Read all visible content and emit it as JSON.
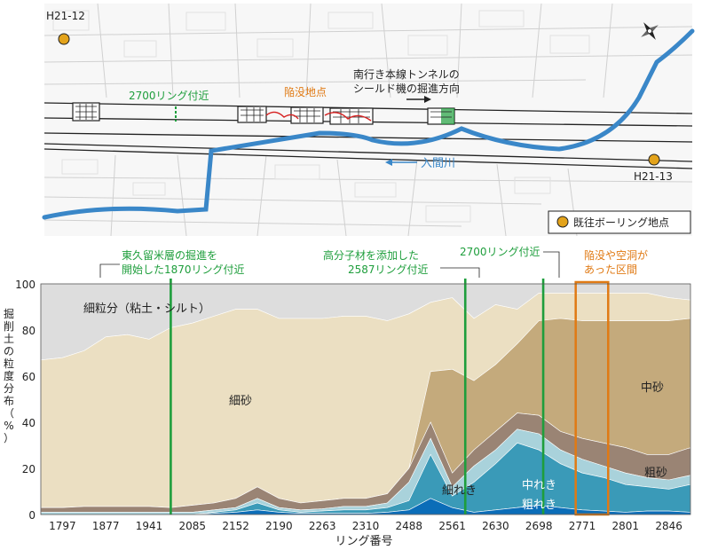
{
  "map": {
    "boreholes": [
      {
        "id": "H21-12"
      },
      {
        "id": "H21-13"
      }
    ],
    "label_2700_near": "2700リング付近",
    "label_collapse_point": "陥没地点",
    "direction_line1": "南行き本線トンネルの",
    "direction_line2": "シールド機の掘進方向",
    "river_label": "入間川",
    "legend_label": "既往ボーリング地点",
    "colors": {
      "river": "#3a87c8",
      "borehole": "#e3a31b",
      "green": "#1e9e3c",
      "red": "#d62020"
    }
  },
  "annotations": {
    "ring1870_line1": "東久留米層の掘進を",
    "ring1870_line2": "開始した1870リング付近",
    "ring2587_line1": "高分子材を添加した",
    "ring2587_line2": "2587リング付近",
    "ring2700": "2700リング付近",
    "collapse_line1": "陥没や空洞が",
    "collapse_line2": "あった区間"
  },
  "chart_data": {
    "type": "area",
    "title": "",
    "ylabel_chars": [
      "掘",
      "削",
      "土",
      "の",
      "粒",
      "度",
      "分",
      "布",
      "（",
      "%",
      "）"
    ],
    "xlabel": "リング番号",
    "ylim": [
      0,
      100
    ],
    "yticks": [
      "0",
      "20",
      "40",
      "60",
      "80",
      "100"
    ],
    "x_ticks": [
      "1797",
      "1877",
      "1941",
      "2085",
      "2152",
      "2190",
      "2263",
      "2310",
      "2488",
      "2561",
      "2630",
      "2698",
      "2771",
      "2801",
      "2846"
    ],
    "x": [
      0,
      0.5,
      1,
      1.5,
      2,
      2.5,
      3,
      3.5,
      4,
      4.5,
      5,
      5.5,
      6,
      6.5,
      7,
      7.5,
      8,
      8.5,
      9,
      9.5,
      10,
      10.5,
      11,
      11.5,
      12,
      12.5,
      13,
      13.5,
      14,
      14.5,
      15
    ],
    "stacked_cumulative": true,
    "series": [
      {
        "name": "粗れき",
        "color": "#0b6db8",
        "values": [
          0,
          0,
          0,
          0,
          0,
          0,
          0,
          0,
          0.5,
          1,
          2,
          1,
          0.5,
          0.5,
          0.5,
          0.5,
          1,
          2,
          7,
          3,
          1,
          2,
          3,
          4,
          3,
          2,
          1.5,
          1,
          1.5,
          1.5,
          1
        ]
      },
      {
        "name": "中れき",
        "color": "#3a9ab8",
        "values": [
          0,
          0,
          0,
          0,
          0,
          0,
          0,
          0,
          1,
          2,
          5,
          2,
          1,
          1.5,
          2,
          2,
          3,
          6,
          26,
          8,
          14,
          22,
          31,
          28,
          22,
          18,
          16,
          13,
          12,
          11,
          13
        ]
      },
      {
        "name": "細れき",
        "color": "#a9d2db",
        "values": [
          1,
          1,
          1,
          1,
          1,
          1,
          1,
          1,
          2,
          3,
          7,
          3,
          2,
          2.5,
          3.5,
          3.5,
          5,
          14,
          33,
          12,
          21,
          28,
          37,
          35,
          28,
          24,
          21,
          18,
          16,
          15,
          17
        ]
      },
      {
        "name": "粗砂",
        "color": "#9a8474",
        "values": [
          3,
          3,
          3.5,
          3.5,
          3.5,
          3.5,
          3,
          4,
          5,
          7,
          12,
          7,
          5,
          6,
          7,
          7,
          9,
          20,
          40,
          18,
          28,
          36,
          44,
          43,
          36,
          33,
          31,
          29,
          26,
          26,
          29
        ]
      },
      {
        "name": "中砂",
        "color": "#c4aa7c",
        "values": [
          3,
          3,
          3.5,
          3.5,
          3.5,
          3.5,
          3,
          4,
          5,
          7,
          12,
          7,
          5,
          6,
          7,
          7,
          9,
          20,
          62,
          63,
          58,
          65,
          74,
          84,
          85,
          84,
          84,
          84,
          84,
          84,
          85
        ]
      },
      {
        "name": "細砂",
        "color": "#ebdfc2",
        "values": [
          67,
          68,
          71,
          77,
          78,
          76,
          81,
          83,
          86,
          89,
          89,
          85,
          85,
          85,
          86,
          86,
          84,
          87,
          92,
          94,
          85,
          91,
          89,
          96,
          96,
          96,
          96,
          96,
          96,
          94,
          93
        ]
      },
      {
        "name": "細粒分（粘土・シルト）",
        "color": "#dddddd",
        "values": [
          100,
          100,
          100,
          100,
          100,
          100,
          100,
          100,
          100,
          100,
          100,
          100,
          100,
          100,
          100,
          100,
          100,
          100,
          100,
          100,
          100,
          100,
          100,
          100,
          100,
          100,
          100,
          100,
          100,
          100,
          100
        ]
      }
    ],
    "area_labels": {
      "fines": "細粒分（粘土・シルト）",
      "fine_sand": "細砂",
      "medium_sand": "中砂",
      "coarse_sand": "粗砂",
      "fine_gravel": "細れき",
      "medium_gravel": "中れき",
      "coarse_gravel": "粗れき"
    },
    "vertical_markers": [
      {
        "x": 3,
        "label": "1870"
      },
      {
        "x": 9.8,
        "label": "2587"
      },
      {
        "x": 11.6,
        "label": "2700"
      }
    ],
    "highlight_range": [
      12.35,
      13.1
    ]
  }
}
